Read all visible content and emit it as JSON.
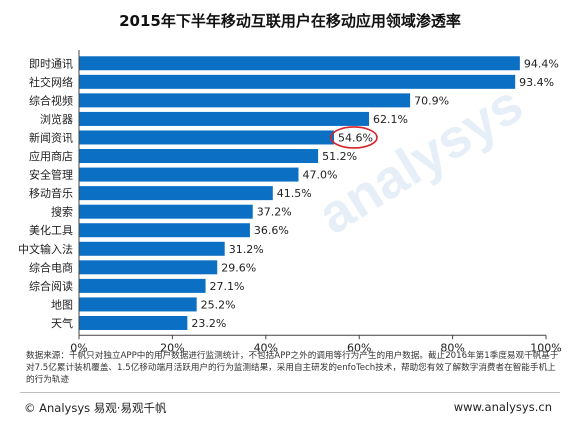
{
  "chart_data": {
    "type": "bar",
    "orientation": "horizontal",
    "title": "2015年下半年移动互联用户在移动应用领域渗透率",
    "categories": [
      "即时通讯",
      "社交网络",
      "综合视频",
      "浏览器",
      "新闻资讯",
      "应用商店",
      "安全管理",
      "移动音乐",
      "搜索",
      "美化工具",
      "中文输入法",
      "综合电商",
      "综合阅读",
      "地图",
      "天气"
    ],
    "values": [
      94.4,
      93.4,
      70.9,
      62.1,
      54.6,
      51.2,
      47.0,
      41.5,
      37.2,
      36.6,
      31.2,
      29.6,
      27.1,
      25.2,
      23.2
    ],
    "value_labels": [
      "94.4%",
      "93.4%",
      "70.9%",
      "62.1%",
      "54.6%",
      "51.2%",
      "47.0%",
      "41.5%",
      "37.2%",
      "36.6%",
      "31.2%",
      "29.6%",
      "27.1%",
      "25.2%",
      "23.2%"
    ],
    "xlim": [
      0,
      100
    ],
    "x_ticks": [
      "0%",
      "20%",
      "40%",
      "60%",
      "80%",
      "100%"
    ],
    "grid": false,
    "bar_color": "#0b6fc4",
    "highlight_index": 4,
    "highlight_color": "#d9232a"
  },
  "watermark": "analysys",
  "source_note": "数据来源：千帆只对独立APP中的用户数据进行监测统计，不包括APP之外的调用等行为产生的用户数据。截止2016年第1季度易观千帆基于对7.5亿累计装机覆盖、1.5亿移动端月活跃用户的行为监测结果，采用自主研发的enfoTech技术，帮助您有效了解数字消费者在智能手机上的行为轨迹",
  "footer": {
    "left": "© Analysys 易观·易观千帆",
    "right": "www.analysys.cn"
  }
}
